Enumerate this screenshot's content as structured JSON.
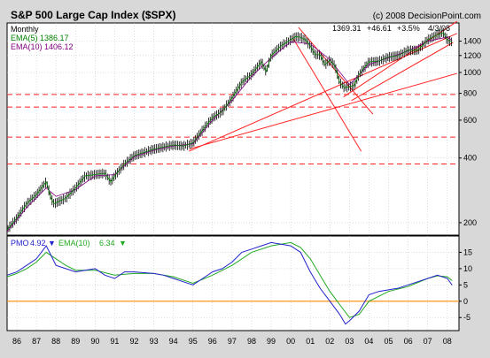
{
  "header": {
    "title": "S&P 500 Large Cap Index ($SPX)",
    "copyright": "(c) 2008 DecisionPoint.com",
    "period": "Monthly",
    "ema5_label": "EMA(5) 1386.17",
    "ema10_label": "EMA(10) 1406.12",
    "quote": "1369.31",
    "change": "+46.61",
    "change_pct": "+3.5%",
    "date": "4/3/08"
  },
  "pmo_header": {
    "pmo_name": "PMO",
    "pmo_value": "4.92",
    "ema_name": "EMA(10)",
    "ema_value": "6.34"
  },
  "colors": {
    "price": "#000000",
    "ema5": "#008000",
    "ema10": "#800080",
    "pmo": "#2222cc",
    "pmo_ema": "#22aa22",
    "trend": "#ff2222",
    "zero": "#ff8800",
    "background": "#ffffff",
    "frame": "#d8d8d8"
  },
  "chart_data": [
    {
      "type": "line",
      "title": "S&P 500 Large Cap Index ($SPX)",
      "scale": "log",
      "ylim": [
        175,
        1700
      ],
      "y_ticks": [
        200,
        400,
        600,
        800,
        1000,
        1200,
        1400
      ],
      "x_ticks": [
        "86",
        "87",
        "88",
        "89",
        "90",
        "91",
        "92",
        "93",
        "94",
        "95",
        "96",
        "97",
        "98",
        "99",
        "00",
        "01",
        "02",
        "03",
        "04",
        "05",
        "06",
        "07",
        "08"
      ],
      "grid": true,
      "legend": "top-left",
      "series": [
        {
          "name": "EMA(5) 1386.17",
          "x": [
            1985.5,
            1986.0,
            1986.5,
            1987.0,
            1987.5,
            1987.75,
            1987.9,
            1988.5,
            1989.0,
            1989.5,
            1990.0,
            1990.5,
            1990.8,
            1991.0,
            1991.5,
            1992.0,
            1993.0,
            1994.0,
            1994.5,
            1995.0,
            1995.5,
            1996.0,
            1996.5,
            1997.0,
            1997.5,
            1998.0,
            1998.5,
            1998.75,
            1999.0,
            1999.5,
            2000.0,
            2000.25,
            2000.5,
            2000.75,
            2001.0,
            2001.25,
            2001.5,
            2001.75,
            2002.0,
            2002.25,
            2002.5,
            2002.75,
            2003.0,
            2003.25,
            2003.5,
            2004.0,
            2004.5,
            2005.0,
            2005.5,
            2006.0,
            2006.5,
            2007.0,
            2007.5,
            2007.8,
            2008.0,
            2008.25
          ],
          "values": [
            185,
            210,
            245,
            270,
            310,
            260,
            245,
            260,
            290,
            330,
            335,
            340,
            310,
            330,
            375,
            410,
            440,
            460,
            455,
            470,
            540,
            615,
            660,
            760,
            900,
            980,
            1120,
            1010,
            1200,
            1330,
            1420,
            1470,
            1460,
            1420,
            1330,
            1210,
            1210,
            1090,
            1140,
            1080,
            900,
            850,
            860,
            870,
            980,
            1120,
            1130,
            1180,
            1200,
            1270,
            1270,
            1420,
            1500,
            1530,
            1420,
            1386.17
          ]
        },
        {
          "name": "EMA(10) 1406.12",
          "x": [
            1985.5,
            1986.5,
            1987.5,
            1988.0,
            1989.0,
            1990.0,
            1991.0,
            1992.0,
            1993.0,
            1994.0,
            1995.0,
            1996.0,
            1997.0,
            1998.0,
            1999.0,
            2000.0,
            2001.0,
            2002.0,
            2003.0,
            2004.0,
            2005.0,
            2006.0,
            2007.0,
            2008.0,
            2008.25
          ],
          "values": [
            182,
            235,
            290,
            265,
            285,
            330,
            335,
            405,
            435,
            455,
            465,
            600,
            740,
            960,
            1170,
            1390,
            1360,
            1150,
            880,
            1090,
            1170,
            1260,
            1400,
            1460,
            1406.12
          ]
        }
      ],
      "annotations": [
        "upper trend channel 1995–2008 (red)",
        "declining channel 2000–2003 (red)",
        "horizontal support lines (red dashed)"
      ],
      "horizontal_levels": [
        375,
        500,
        690,
        790
      ]
    },
    {
      "type": "line",
      "title": "PMO 4.92 EMA(10) 6.34",
      "ylim": [
        -9,
        20
      ],
      "y_ticks": [
        -5,
        0,
        5,
        10,
        15
      ],
      "x_ticks": [
        "86",
        "87",
        "88",
        "89",
        "90",
        "91",
        "92",
        "93",
        "94",
        "95",
        "96",
        "97",
        "98",
        "99",
        "00",
        "01",
        "02",
        "03",
        "04",
        "05",
        "06",
        "07",
        "08"
      ],
      "grid": true,
      "legend": "top-left",
      "zero_line": 0,
      "series": [
        {
          "name": "PMO",
          "x": [
            1985.5,
            1986.0,
            1986.5,
            1987.0,
            1987.5,
            1987.75,
            1988.0,
            1988.5,
            1989.0,
            1989.5,
            1990.0,
            1990.5,
            1991.0,
            1991.5,
            1992.0,
            1993.0,
            1993.5,
            1994.0,
            1994.5,
            1995.0,
            1995.5,
            1996.0,
            1996.5,
            1997.0,
            1997.5,
            1998.0,
            1998.5,
            1999.0,
            1999.5,
            2000.0,
            2000.5,
            2001.0,
            2001.5,
            2002.0,
            2002.5,
            2002.8,
            2003.0,
            2003.5,
            2004.0,
            2004.5,
            2005.0,
            2005.5,
            2006.0,
            2006.5,
            2007.0,
            2007.5,
            2008.0,
            2008.25
          ],
          "values": [
            8,
            9,
            11,
            13,
            17,
            14,
            11,
            10,
            9,
            9.5,
            10,
            8,
            7,
            9,
            9,
            8.5,
            8,
            7,
            6,
            5,
            7,
            9,
            10,
            12,
            15,
            16,
            17,
            18,
            17.5,
            17,
            15,
            9,
            4,
            0,
            -4,
            -7,
            -6,
            -3,
            2,
            3,
            3.5,
            4,
            5,
            6,
            7,
            8,
            7,
            4.92
          ]
        },
        {
          "name": "EMA(10)",
          "x": [
            1985.5,
            1986.0,
            1986.5,
            1987.0,
            1987.5,
            1988.0,
            1988.5,
            1989.0,
            1990.0,
            1991.0,
            1992.0,
            1993.0,
            1994.0,
            1995.0,
            1996.0,
            1997.0,
            1998.0,
            1999.0,
            2000.0,
            2000.5,
            2001.0,
            2001.5,
            2002.0,
            2002.5,
            2003.0,
            2003.5,
            2004.0,
            2005.0,
            2006.0,
            2007.0,
            2007.5,
            2008.0,
            2008.25
          ],
          "values": [
            7.5,
            8.5,
            10,
            12,
            15,
            13,
            11,
            9.5,
            9.5,
            8,
            8.5,
            8.5,
            7.5,
            5.5,
            8,
            11,
            15,
            17,
            18,
            16.5,
            13,
            8,
            3,
            -1,
            -5,
            -4,
            0,
            3,
            4.5,
            7,
            7.8,
            7.5,
            6.34
          ]
        }
      ]
    }
  ]
}
